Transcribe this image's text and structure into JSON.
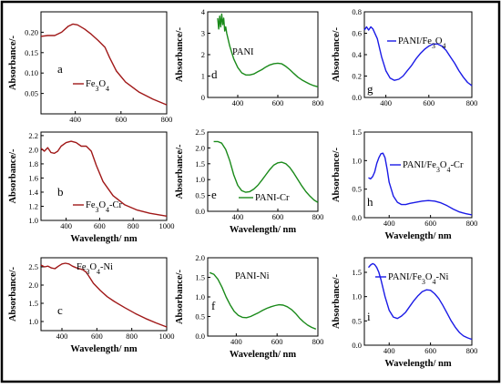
{
  "chart_data": [
    {
      "type": "line",
      "panel_letter": "a",
      "color": "#a01818",
      "ylabel": "Absorbance/-",
      "xlabel": "",
      "xlim": [
        250,
        800
      ],
      "ylim": [
        0.0,
        0.25
      ],
      "xticks": [
        400,
        600,
        800
      ],
      "yticks": [
        0.05,
        0.1,
        0.15,
        0.2
      ],
      "ytick_labels": [
        "0.05",
        "0.10",
        "0.15",
        "0.20"
      ],
      "series": [
        {
          "name": "Fe3O4",
          "x": [
            250,
            280,
            310,
            340,
            370,
            390,
            410,
            440,
            470,
            500,
            530,
            550,
            580,
            620,
            680,
            740,
            800
          ],
          "y": [
            0.19,
            0.192,
            0.192,
            0.2,
            0.215,
            0.22,
            0.218,
            0.208,
            0.195,
            0.18,
            0.163,
            0.138,
            0.105,
            0.078,
            0.053,
            0.036,
            0.022
          ]
        }
      ]
    },
    {
      "type": "line",
      "panel_letter": "d",
      "color": "#1a8a1a",
      "ylabel": "Absorbance/-",
      "xlabel": "",
      "xlim": [
        250,
        800
      ],
      "ylim": [
        0,
        4
      ],
      "xticks": [
        400,
        600,
        800
      ],
      "yticks": [
        0,
        1,
        2,
        3,
        4
      ],
      "ytick_labels": [
        "0",
        "1",
        "2",
        "3",
        "4"
      ],
      "series": [
        {
          "name": "PANI",
          "x": [
            300,
            305,
            310,
            315,
            320,
            325,
            330,
            335,
            340,
            345,
            350,
            360,
            380,
            400,
            420,
            440,
            460,
            480,
            500,
            520,
            540,
            560,
            580,
            600,
            620,
            640,
            660,
            680,
            700,
            720,
            740,
            760,
            780,
            800
          ],
          "y": [
            3.7,
            3.2,
            3.8,
            3.3,
            3.9,
            3.4,
            3.7,
            3.1,
            3.3,
            3.0,
            2.8,
            2.4,
            1.8,
            1.4,
            1.15,
            1.05,
            1.05,
            1.1,
            1.2,
            1.3,
            1.42,
            1.52,
            1.58,
            1.6,
            1.57,
            1.45,
            1.3,
            1.12,
            0.95,
            0.82,
            0.72,
            0.62,
            0.55,
            0.5
          ]
        }
      ]
    },
    {
      "type": "line",
      "panel_letter": "g",
      "color": "#1a1ae6",
      "ylabel": "Absorbance/-",
      "xlabel": "",
      "xlim": [
        300,
        800
      ],
      "ylim": [
        0.0,
        0.8
      ],
      "xticks": [
        400,
        600,
        800
      ],
      "yticks": [
        0.0,
        0.2,
        0.4,
        0.6,
        0.8
      ],
      "ytick_labels": [
        "0.0",
        "0.2",
        "0.4",
        "0.6",
        "0.8"
      ],
      "series": [
        {
          "name": "PANI/Fe3O4",
          "x": [
            300,
            310,
            320,
            330,
            340,
            360,
            380,
            400,
            420,
            440,
            460,
            480,
            500,
            520,
            540,
            560,
            580,
            600,
            620,
            640,
            660,
            680,
            700,
            720,
            740,
            760,
            780,
            800
          ],
          "y": [
            0.63,
            0.66,
            0.63,
            0.66,
            0.64,
            0.55,
            0.38,
            0.25,
            0.18,
            0.16,
            0.17,
            0.2,
            0.25,
            0.3,
            0.36,
            0.41,
            0.45,
            0.48,
            0.5,
            0.5,
            0.48,
            0.44,
            0.38,
            0.32,
            0.25,
            0.19,
            0.14,
            0.11
          ]
        }
      ]
    },
    {
      "type": "line",
      "panel_letter": "b",
      "color": "#a01818",
      "ylabel": "Absorbance/-",
      "xlabel": "Wavelength/ nm",
      "xlim": [
        250,
        1000
      ],
      "ylim": [
        1.0,
        2.25
      ],
      "xticks": [
        400,
        600,
        800,
        1000
      ],
      "yticks": [
        1.0,
        1.2,
        1.4,
        1.6,
        1.8,
        2.0,
        2.2
      ],
      "ytick_labels": [
        "1.0",
        "1.2",
        "1.4",
        "1.6",
        "1.8",
        "2.0",
        "2.2"
      ],
      "series": [
        {
          "name": "Fe3O4-Cr",
          "x": [
            250,
            270,
            290,
            310,
            330,
            350,
            370,
            400,
            430,
            460,
            490,
            520,
            550,
            580,
            620,
            680,
            750,
            820,
            900,
            1000
          ],
          "y": [
            2.02,
            1.98,
            2.03,
            1.96,
            1.95,
            1.98,
            2.05,
            2.1,
            2.12,
            2.1,
            2.05,
            2.05,
            1.98,
            1.78,
            1.55,
            1.35,
            1.22,
            1.15,
            1.1,
            1.06
          ]
        }
      ]
    },
    {
      "type": "line",
      "panel_letter": "e",
      "color": "#1a8a1a",
      "ylabel": "Absorbance/-",
      "xlabel": "Wavelength/ nm",
      "xlim": [
        250,
        800
      ],
      "ylim": [
        0.0,
        2.5
      ],
      "xticks": [
        400,
        600,
        800
      ],
      "yticks": [
        0.0,
        0.5,
        1.0,
        1.5,
        2.0,
        2.5
      ],
      "ytick_labels": [
        "0.0",
        "0.5",
        "1.0",
        "1.5",
        "2.0",
        "2.5"
      ],
      "series": [
        {
          "name": "PANI-Cr",
          "x": [
            280,
            300,
            320,
            340,
            360,
            380,
            400,
            420,
            440,
            460,
            480,
            500,
            520,
            540,
            560,
            580,
            600,
            620,
            640,
            660,
            680,
            700,
            720,
            740,
            760,
            780,
            800
          ],
          "y": [
            2.2,
            2.2,
            2.15,
            1.95,
            1.6,
            1.15,
            0.82,
            0.65,
            0.6,
            0.62,
            0.7,
            0.82,
            0.98,
            1.15,
            1.32,
            1.46,
            1.53,
            1.55,
            1.5,
            1.38,
            1.2,
            1.0,
            0.8,
            0.62,
            0.48,
            0.36,
            0.28
          ]
        }
      ]
    },
    {
      "type": "line",
      "panel_letter": "h",
      "color": "#1a1ae6",
      "ylabel": "Absorbance/-",
      "xlabel": "Wavelength/ nm",
      "xlim": [
        280,
        800
      ],
      "ylim": [
        0.0,
        1.5
      ],
      "xticks": [
        400,
        600,
        800
      ],
      "yticks": [
        0.0,
        0.5,
        1.0,
        1.5
      ],
      "ytick_labels": [
        "0.0",
        "0.5",
        "1.0",
        "1.5"
      ],
      "series": [
        {
          "name": "PANI/Fe3O4-Cr",
          "x": [
            300,
            310,
            320,
            330,
            340,
            350,
            360,
            370,
            380,
            390,
            400,
            420,
            440,
            460,
            480,
            500,
            530,
            560,
            590,
            620,
            650,
            680,
            710,
            740,
            770,
            800
          ],
          "y": [
            0.7,
            0.68,
            0.72,
            0.8,
            0.95,
            1.05,
            1.12,
            1.13,
            1.05,
            0.85,
            0.62,
            0.38,
            0.27,
            0.23,
            0.23,
            0.25,
            0.27,
            0.29,
            0.3,
            0.29,
            0.26,
            0.21,
            0.15,
            0.1,
            0.07,
            0.05
          ]
        }
      ]
    },
    {
      "type": "line",
      "panel_letter": "c",
      "color": "#a01818",
      "ylabel": "Absorbance/-",
      "xlabel": "Wavelength/ nm",
      "xlim": [
        280,
        1000
      ],
      "ylim": [
        0.75,
        2.75
      ],
      "xticks": [
        400,
        600,
        800,
        1000
      ],
      "yticks": [
        1.0,
        1.5,
        2.0,
        2.5
      ],
      "ytick_labels": [
        "1.0",
        "1.5",
        "2.0",
        "2.5"
      ],
      "series": [
        {
          "name": "Fe3O4-Ni",
          "x": [
            280,
            300,
            320,
            340,
            360,
            380,
            400,
            420,
            440,
            460,
            480,
            500,
            520,
            540,
            560,
            580,
            620,
            660,
            700,
            760,
            820,
            880,
            940,
            1000
          ],
          "y": [
            2.55,
            2.5,
            2.52,
            2.47,
            2.45,
            2.52,
            2.58,
            2.6,
            2.58,
            2.52,
            2.48,
            2.45,
            2.42,
            2.35,
            2.2,
            2.05,
            1.85,
            1.68,
            1.55,
            1.38,
            1.22,
            1.08,
            0.96,
            0.85
          ]
        }
      ]
    },
    {
      "type": "line",
      "panel_letter": "f",
      "color": "#1a8a1a",
      "ylabel": "Absorbance/-",
      "xlabel": "Wavelength/ nm",
      "xlim": [
        260,
        800
      ],
      "ylim": [
        0.0,
        2.0
      ],
      "xticks": [
        400,
        600,
        800
      ],
      "yticks": [
        0.0,
        0.5,
        1.0,
        1.5,
        2.0
      ],
      "ytick_labels": [
        "0.0",
        "0.5",
        "1.0",
        "1.5",
        "2.0"
      ],
      "series": [
        {
          "name": "PANI-Ni",
          "x": [
            270,
            290,
            310,
            330,
            350,
            370,
            390,
            410,
            430,
            450,
            470,
            490,
            510,
            530,
            550,
            570,
            590,
            610,
            630,
            650,
            670,
            690,
            710,
            730,
            750,
            770,
            790
          ],
          "y": [
            1.62,
            1.58,
            1.45,
            1.25,
            1.0,
            0.8,
            0.63,
            0.53,
            0.48,
            0.47,
            0.5,
            0.55,
            0.6,
            0.66,
            0.71,
            0.75,
            0.78,
            0.8,
            0.79,
            0.75,
            0.68,
            0.58,
            0.46,
            0.36,
            0.28,
            0.22,
            0.18
          ]
        }
      ]
    },
    {
      "type": "line",
      "panel_letter": "i",
      "color": "#1a1ae6",
      "ylabel": "Absorbance/-",
      "xlabel": "Wavelength/ nm",
      "xlim": [
        280,
        800
      ],
      "ylim": [
        0.0,
        1.8
      ],
      "xticks": [
        400,
        600,
        800
      ],
      "yticks": [
        0.0,
        0.5,
        1.0,
        1.5
      ],
      "ytick_labels": [
        "0.0",
        "0.5",
        "1.0",
        "1.5"
      ],
      "series": [
        {
          "name": "PANI/Fe3O4-Ni",
          "x": [
            300,
            310,
            320,
            330,
            340,
            350,
            360,
            380,
            400,
            420,
            440,
            460,
            480,
            500,
            520,
            540,
            560,
            580,
            600,
            620,
            640,
            660,
            680,
            700,
            720,
            740,
            760,
            780,
            800
          ],
          "y": [
            1.6,
            1.65,
            1.68,
            1.66,
            1.6,
            1.5,
            1.35,
            1.0,
            0.72,
            0.58,
            0.55,
            0.6,
            0.68,
            0.8,
            0.92,
            1.02,
            1.1,
            1.14,
            1.13,
            1.06,
            0.96,
            0.82,
            0.66,
            0.5,
            0.37,
            0.26,
            0.19,
            0.15,
            0.12
          ]
        }
      ]
    }
  ]
}
